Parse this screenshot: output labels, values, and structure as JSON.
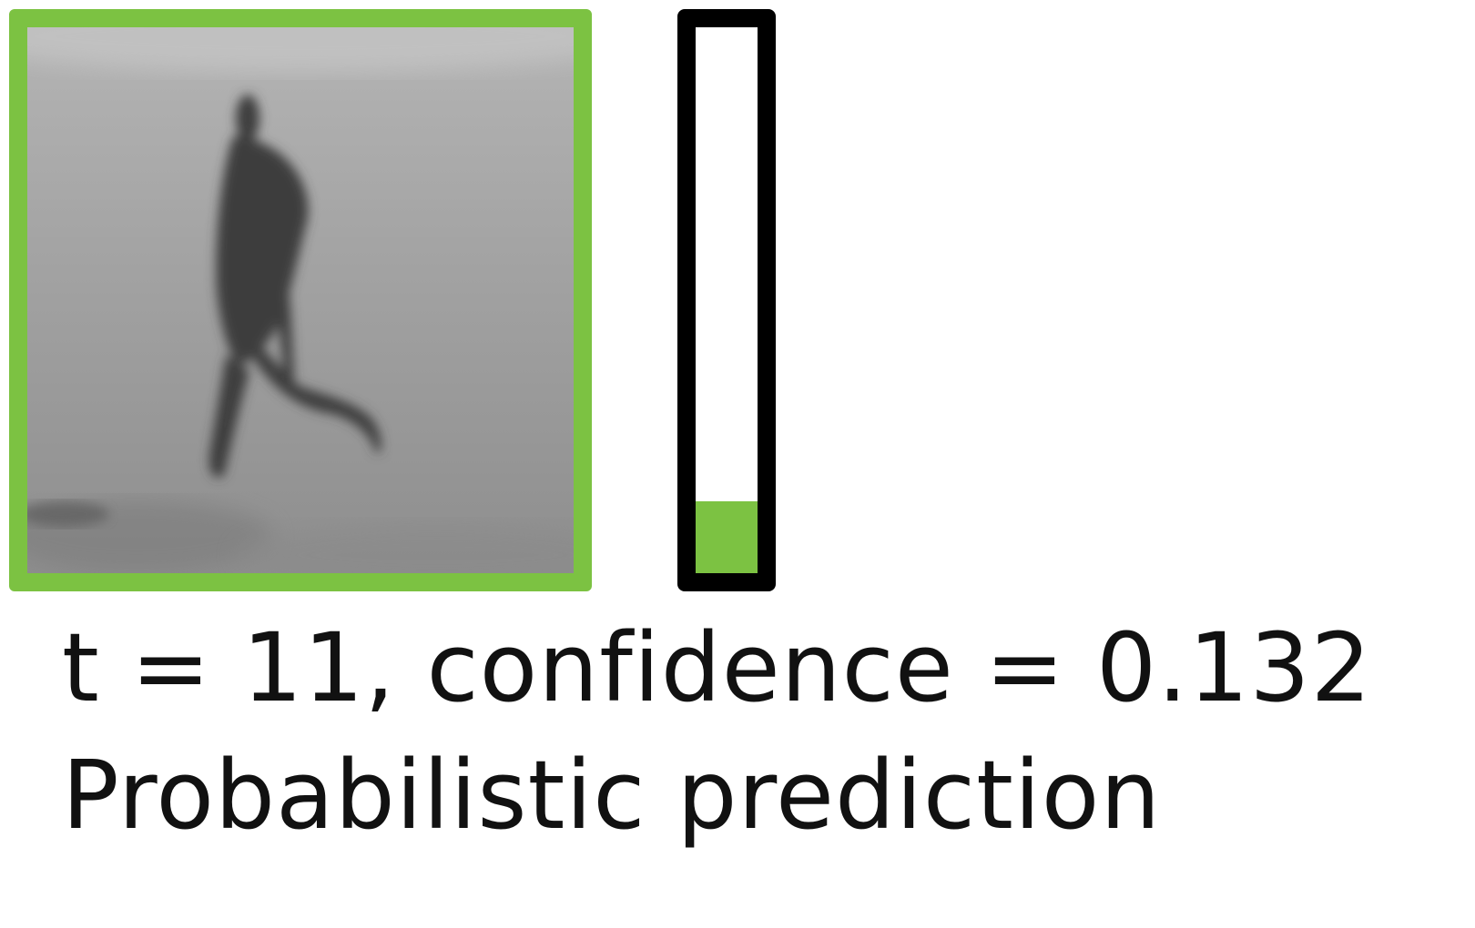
{
  "frame": {
    "subject": "person-running",
    "border_color": "#7cc242"
  },
  "confidence_meter": {
    "value": 0.132,
    "fill_color": "#7cc242",
    "border_color": "#000000"
  },
  "caption": {
    "line1": "t = 11, confidence = 0.132",
    "line2": "Probabilistic prediction"
  }
}
